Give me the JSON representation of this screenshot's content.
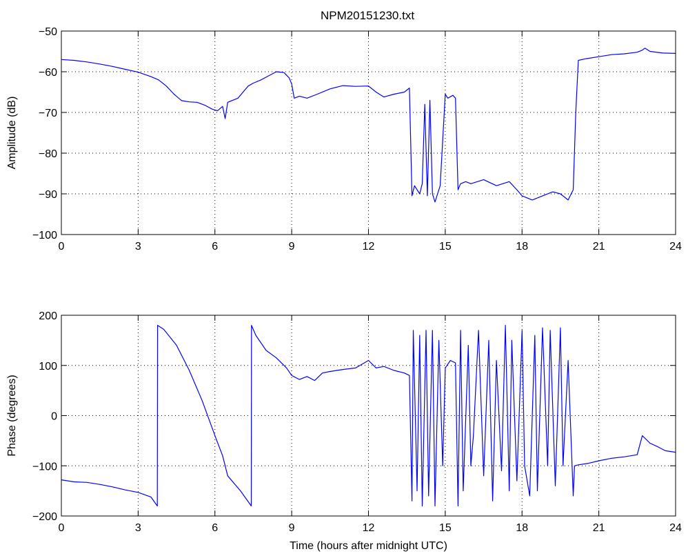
{
  "figure": {
    "title": "NPM20151230.txt"
  },
  "chart_data": [
    {
      "type": "line",
      "title": "NPM20151230.txt",
      "xlabel": "",
      "ylabel": "Amplitude (dB)",
      "xlim": [
        0,
        24
      ],
      "ylim": [
        -100,
        -50
      ],
      "xticks": [
        "0",
        "3",
        "6",
        "9",
        "12",
        "15",
        "18",
        "21",
        "24"
      ],
      "yticks": [
        "−100",
        "−90",
        "−80",
        "−70",
        "−60",
        "−50"
      ],
      "grid": true,
      "line_color": "#0000ff",
      "series": [
        {
          "x": [
            0,
            0.5,
            1,
            1.5,
            2,
            2.5,
            3,
            3.5,
            3.8,
            4.1,
            4.4,
            4.7,
            5,
            5.3,
            5.6,
            5.9,
            6.1,
            6.3,
            6.4,
            6.5,
            6.7,
            6.9,
            7.1,
            7.3,
            7.5,
            7.8,
            8.1,
            8.4,
            8.7,
            8.9,
            9.0,
            9.1,
            9.3,
            9.6,
            10,
            10.5,
            11,
            11.5,
            12,
            12.3,
            12.6,
            13,
            13.4,
            13.6,
            13.7,
            13.8,
            14.0,
            14.1,
            14.2,
            14.3,
            14.4,
            14.5,
            14.6,
            14.8,
            15.0,
            15.1,
            15.3,
            15.4,
            15.5,
            15.6,
            15.8,
            16,
            16.5,
            17,
            17.5,
            17.8,
            18,
            18.4,
            18.8,
            19.2,
            19.5,
            19.8,
            20.0,
            20.1,
            20.2,
            20.5,
            21,
            21.5,
            22,
            22.5,
            22.7,
            22.8,
            23,
            23.5,
            24
          ],
          "y": [
            -57.0,
            -57.2,
            -57.6,
            -58.1,
            -58.7,
            -59.4,
            -60.1,
            -61.2,
            -62.0,
            -63.5,
            -65.5,
            -67.1,
            -67.4,
            -67.5,
            -68.2,
            -69.2,
            -69.6,
            -68.5,
            -71.5,
            -67.5,
            -67.0,
            -66.5,
            -65.0,
            -63.5,
            -62.8,
            -62.0,
            -61.0,
            -60.0,
            -60.2,
            -61.5,
            -63.0,
            -66.5,
            -66.0,
            -66.5,
            -65.5,
            -64.2,
            -63.4,
            -63.6,
            -63.5,
            -65.0,
            -66.2,
            -65.5,
            -65.0,
            -64.0,
            -90.5,
            -88.0,
            -90.0,
            -87.5,
            -68.0,
            -90.5,
            -67.0,
            -90.0,
            -92.0,
            -88.0,
            -65.5,
            -66.5,
            -65.8,
            -66.5,
            -89.0,
            -87.5,
            -87.0,
            -87.5,
            -86.5,
            -88.0,
            -87.0,
            -89.0,
            -90.5,
            -91.5,
            -90.5,
            -89.5,
            -90.0,
            -91.5,
            -89.0,
            -70.0,
            -57.2,
            -56.8,
            -56.3,
            -55.8,
            -55.6,
            -55.2,
            -54.7,
            -54.2,
            -55.0,
            -55.4,
            -55.5
          ]
        }
      ]
    },
    {
      "type": "line",
      "title": "",
      "xlabel": "Time (hours after midnight UTC)",
      "ylabel": "Phase (degrees)",
      "xlim": [
        0,
        24
      ],
      "ylim": [
        -200,
        200
      ],
      "xticks": [
        "0",
        "3",
        "6",
        "9",
        "12",
        "15",
        "18",
        "21",
        "24"
      ],
      "yticks": [
        "−200",
        "−100",
        "0",
        "100",
        "200"
      ],
      "grid": true,
      "line_color": "#0000ff",
      "series": [
        {
          "x": [
            0,
            0.5,
            1,
            1.5,
            2,
            2.5,
            3,
            3.5,
            3.75,
            3.76,
            4.0,
            4.5,
            5.0,
            5.5,
            6.0,
            6.3,
            6.5,
            7.0,
            7.42,
            7.43,
            7.6,
            8.0,
            8.4,
            8.8,
            9.0,
            9.3,
            9.6,
            9.9,
            10.2,
            10.5,
            11.0,
            11.5,
            12.0,
            12.3,
            12.6,
            13.0,
            13.4,
            13.6,
            13.7,
            13.75,
            13.9,
            14.0,
            14.1,
            14.25,
            14.35,
            14.5,
            14.6,
            14.75,
            14.9,
            15.0,
            15.2,
            15.4,
            15.5,
            15.6,
            15.7,
            15.9,
            16.0,
            16.1,
            16.3,
            16.5,
            16.7,
            16.85,
            17.0,
            17.2,
            17.35,
            17.5,
            17.6,
            17.8,
            18.0,
            18.1,
            18.3,
            18.5,
            18.6,
            18.8,
            19.0,
            19.1,
            19.3,
            19.5,
            19.6,
            19.8,
            20.0,
            20.05,
            20.2,
            20.6,
            21.0,
            21.5,
            22.0,
            22.5,
            22.7,
            22.8,
            23.0,
            23.3,
            23.6,
            24.0
          ],
          "y": [
            -128,
            -132,
            -133,
            -137,
            -142,
            -148,
            -153,
            -162,
            -180,
            180,
            172,
            140,
            90,
            30,
            -40,
            -80,
            -120,
            -150,
            -180,
            180,
            160,
            130,
            115,
            95,
            80,
            72,
            78,
            70,
            85,
            88,
            92,
            95,
            110,
            95,
            98,
            90,
            85,
            80,
            -170,
            170,
            -150,
            160,
            -180,
            170,
            -160,
            170,
            -180,
            150,
            -100,
            95,
            110,
            105,
            -180,
            170,
            -150,
            140,
            -100,
            -40,
            170,
            -120,
            150,
            -170,
            110,
            -110,
            180,
            -150,
            150,
            -130,
            170,
            -100,
            -160,
            160,
            -150,
            175,
            -100,
            170,
            -140,
            175,
            -100,
            110,
            -160,
            -100,
            -98,
            -95,
            -90,
            -85,
            -82,
            -78,
            -40,
            -45,
            -55,
            -62,
            -70,
            -73
          ]
        }
      ]
    }
  ]
}
